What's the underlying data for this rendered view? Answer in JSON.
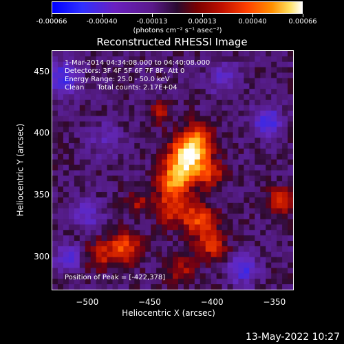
{
  "colorbar": {
    "ticks": [
      "-0.00066",
      "-0.00040",
      "-0.00013",
      "0.00013",
      "0.00040",
      "0.00066"
    ],
    "unit": "(photons cm⁻² s⁻¹ asec⁻²)"
  },
  "annotations": {
    "time": "1-Mar-2014 04:34:08.000 to 04:40:08.000",
    "detectors": "Detectors: 3F 4F 5F 6F 7F 8F, Att 0",
    "energy": "Energy Range: 25.0 - 50.0 keV",
    "clean": "Clean      Total counts: 2.17E+04",
    "peak": "Position of Peak = [-422,378]"
  },
  "footer": "13-May-2022 10:27",
  "chart_data": {
    "type": "heatmap",
    "title": "Reconstructed RHESSI Image",
    "xlabel": "Heliocentric X (arcsec)",
    "ylabel": "Heliocentric Y (arcsec)",
    "xlim": [
      -528,
      -335
    ],
    "ylim": [
      274,
      467
    ],
    "xticks": [
      -500,
      -450,
      -400,
      -350
    ],
    "yticks": [
      300,
      350,
      400,
      450
    ],
    "xtick_labels": [
      "−500",
      "−450",
      "−400",
      "−350"
    ],
    "ytick_labels": [
      "300",
      "350",
      "400",
      "450"
    ],
    "colorscale_range": [
      -0.00066,
      0.00066
    ],
    "colormap": [
      "#0000ff",
      "#5a1a8a",
      "#2a0a30",
      "#c01000",
      "#ff9000",
      "#ffffff"
    ],
    "peak": [
      -422,
      378
    ],
    "sources": [
      {
        "x": -420,
        "y": 380,
        "sigma": 10,
        "amp": 1.0
      },
      {
        "x": -430,
        "y": 362,
        "sigma": 9,
        "amp": 0.7
      },
      {
        "x": -412,
        "y": 395,
        "sigma": 9,
        "amp": 0.6
      },
      {
        "x": -402,
        "y": 368,
        "sigma": 8,
        "amp": 0.45
      },
      {
        "x": -432,
        "y": 340,
        "sigma": 10,
        "amp": 0.45
      },
      {
        "x": -410,
        "y": 330,
        "sigma": 9,
        "amp": 0.55
      },
      {
        "x": -400,
        "y": 310,
        "sigma": 8,
        "amp": 0.45
      },
      {
        "x": -470,
        "y": 308,
        "sigma": 9,
        "amp": 0.55
      },
      {
        "x": -490,
        "y": 302,
        "sigma": 8,
        "amp": 0.35
      },
      {
        "x": -425,
        "y": 290,
        "sigma": 8,
        "amp": 0.35
      },
      {
        "x": -345,
        "y": 345,
        "sigma": 7,
        "amp": 0.55
      },
      {
        "x": -442,
        "y": 418,
        "sigma": 7,
        "amp": 0.3
      },
      {
        "x": -460,
        "y": 345,
        "sigma": 6,
        "amp": 0.3
      },
      {
        "x": -500,
        "y": 335,
        "sigma": 8,
        "amp": -0.35
      },
      {
        "x": -520,
        "y": 445,
        "sigma": 9,
        "amp": -0.5
      },
      {
        "x": -355,
        "y": 410,
        "sigma": 8,
        "amp": -0.5
      },
      {
        "x": -375,
        "y": 290,
        "sigma": 8,
        "amp": -0.45
      },
      {
        "x": -515,
        "y": 300,
        "sigma": 7,
        "amp": -0.4
      },
      {
        "x": -485,
        "y": 395,
        "sigma": 10,
        "amp": -0.2
      },
      {
        "x": -390,
        "y": 445,
        "sigma": 9,
        "amp": -0.3
      }
    ]
  }
}
